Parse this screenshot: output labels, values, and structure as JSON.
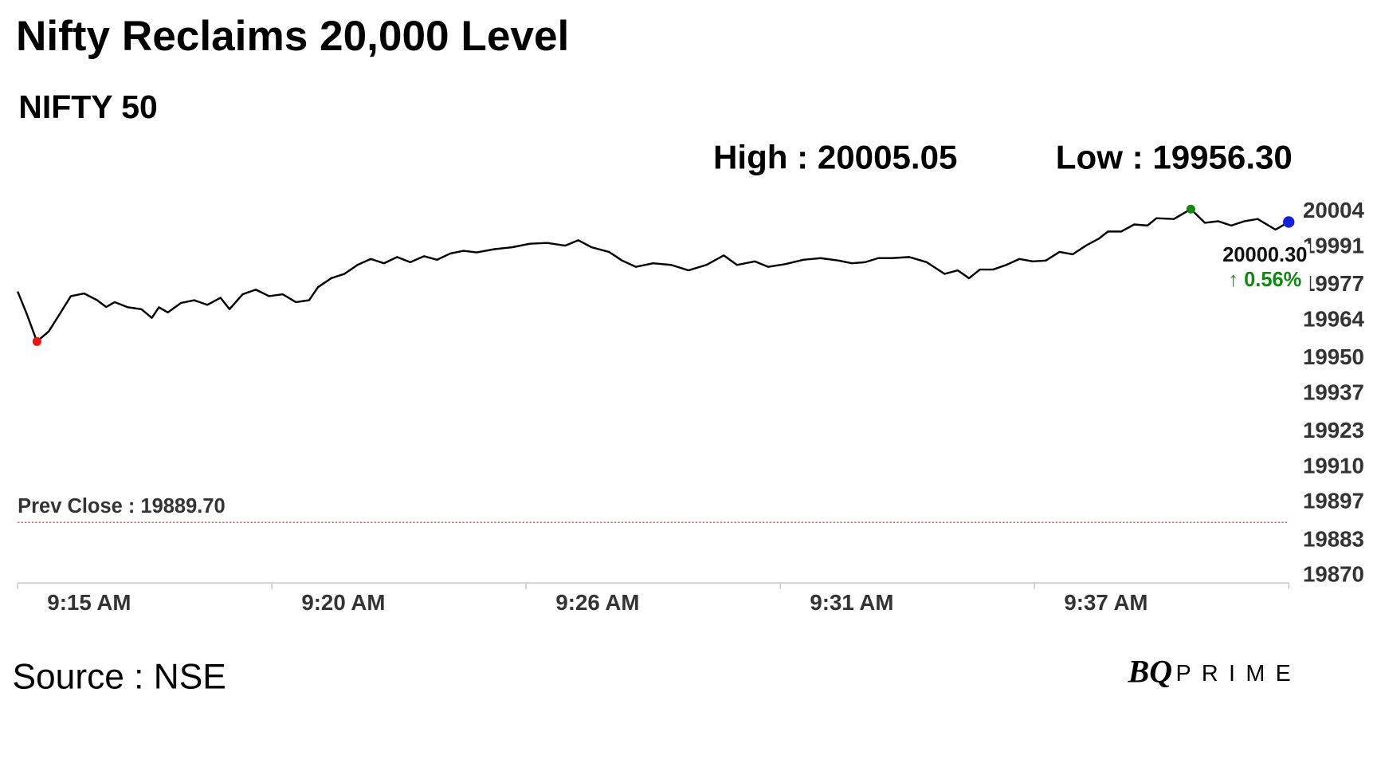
{
  "chart_data": {
    "type": "line",
    "title": "Nifty Reclaims 20,000 Level",
    "subtitle": "NIFTY 50",
    "high_label": "High : 20005.05",
    "low_label": "Low : 19956.30",
    "source": "Source : NSE",
    "brand": [
      "BQ",
      "PRIME"
    ],
    "prev_close": 19889.7,
    "prev_close_label": "Prev Close : 19889.70",
    "prev_close_color": "#cc0000",
    "last_label": "20000.30",
    "change_label": "↑ 0.56%",
    "change_color": "#118811",
    "low_color": "#ee1111",
    "high_color": "#118811",
    "last_color": "#1122dd",
    "x": [
      0,
      0.19,
      0.41,
      0.66,
      0.9,
      1.13,
      1.41,
      1.69,
      1.88,
      2.06,
      2.34,
      2.63,
      2.85,
      3,
      3.19,
      3.47,
      3.75,
      4.03,
      4.31,
      4.5,
      4.78,
      5.06,
      5.34,
      5.63,
      5.91,
      6.19,
      6.38,
      6.66,
      6.94,
      7.22,
      7.5,
      7.78,
      8.06,
      8.34,
      8.63,
      8.91,
      9.19,
      9.47,
      9.75,
      10.13,
      10.5,
      10.88,
      11.25,
      11.63,
      11.91,
      12.19,
      12.56,
      12.84,
      13.13,
      13.5,
      13.88,
      14.25,
      14.63,
      15,
      15.28,
      15.66,
      15.94,
      16.31,
      16.69,
      17.06,
      17.44,
      17.72,
      18,
      18.28,
      18.56,
      18.94,
      19.31,
      19.69,
      19.97,
      20.21,
      20.44,
      20.72,
      21,
      21.28,
      21.56,
      21.84,
      22.13,
      22.41,
      22.69,
      22.97,
      23.16,
      23.44,
      23.72,
      24,
      24.19,
      24.56,
      24.92,
      25.22,
      25.5,
      25.78,
      26.06,
      26.34,
      26.72,
      27
    ],
    "series": [
      {
        "name": "NIFTY 50",
        "color": "#000000",
        "values": [
          19974.7,
          19966.6,
          19956.3,
          19960,
          19966.6,
          19973,
          19974,
          19971.5,
          19969,
          19970.8,
          19968.9,
          19968.2,
          19965,
          19968.9,
          19967,
          19970.5,
          19971.5,
          19969.8,
          19972.4,
          19968.2,
          19973.7,
          19975.4,
          19973,
          19973.7,
          19970.8,
          19971.5,
          19976.3,
          19979.6,
          19981.2,
          19984.5,
          19986.7,
          19985.1,
          19987.4,
          19985.5,
          19987.7,
          19986.4,
          19988.7,
          19989.7,
          19989.1,
          19990.3,
          19991,
          19992.3,
          19992.6,
          19991.6,
          19993.6,
          19991,
          19989.3,
          19986.1,
          19983.8,
          19985.1,
          19984.5,
          19982.5,
          19984.5,
          19988,
          19984.5,
          19985.8,
          19983.8,
          19984.8,
          19986.4,
          19987,
          19986.1,
          19985.1,
          19985.5,
          19987,
          19987,
          19987.4,
          19985.5,
          19981.2,
          19982.5,
          19979.6,
          19982.8,
          19982.8,
          19984.5,
          19986.7,
          19985.8,
          19986.1,
          19989.3,
          19988.4,
          19991.6,
          19994.2,
          19996.8,
          19996.8,
          19999.4,
          19999,
          20001.7,
          20001.4,
          20005.05,
          20000,
          20000.6,
          19999,
          20000.6,
          20001.4,
          19997.5,
          20000.3
        ]
      }
    ],
    "xlim": [
      0,
      27
    ],
    "xticks": [
      {
        "value": 0,
        "label": "9:15 AM"
      },
      {
        "value": 5.4,
        "label": "9:20 AM"
      },
      {
        "value": 10.8,
        "label": "9:26 AM"
      },
      {
        "value": 16.2,
        "label": "9:31 AM"
      },
      {
        "value": 21.6,
        "label": "9:37 AM"
      }
    ],
    "ylim": [
      19870,
      20004
    ],
    "yticks": [
      20004,
      19991,
      19977,
      19964,
      19950,
      19937,
      19923,
      19910,
      19897,
      19883,
      19870
    ]
  }
}
